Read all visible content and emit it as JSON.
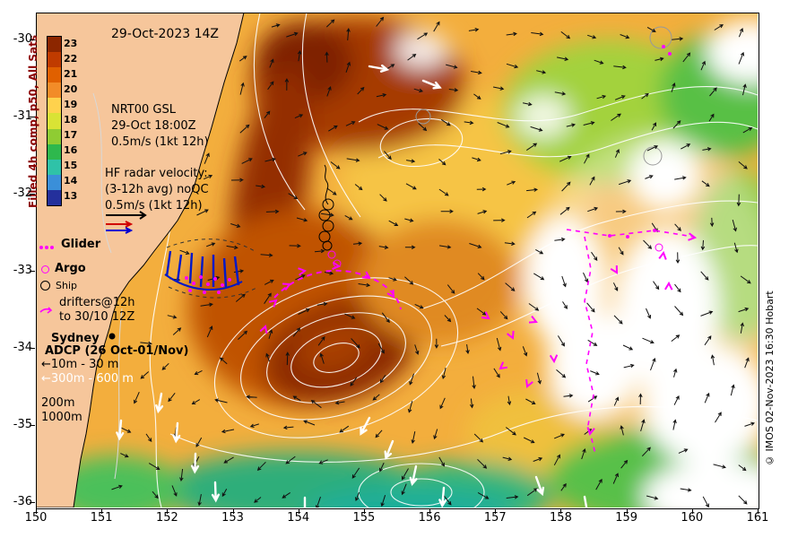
{
  "title": "29-Oct-2023 14Z",
  "colorbar": {
    "label": "Filled 4h comp, p50, All Sats",
    "ticks": [
      "23",
      "22",
      "21",
      "20",
      "19",
      "18",
      "17",
      "16",
      "15",
      "14",
      "13"
    ],
    "colors": [
      "#8c2600",
      "#c03b00",
      "#e06000",
      "#f28c28",
      "#ffd24d",
      "#d9e335",
      "#8fcc33",
      "#2eb84d",
      "#2fc2a8",
      "#3a8fd9",
      "#24309c"
    ]
  },
  "axes": {
    "x_ticks": [
      "150",
      "151",
      "152",
      "153",
      "154",
      "155",
      "156",
      "157",
      "158",
      "159",
      "160",
      "161"
    ],
    "y_ticks": [
      "-30",
      "-31",
      "-32",
      "-33",
      "-34",
      "-35",
      "-36"
    ]
  },
  "annotations": {
    "gsl_line1": "NRT00 GSL",
    "gsl_line2": "29-Oct 18:00Z",
    "gsl_line3": "0.5m/s (1kt 12h)",
    "hf_line1": "HF radar velocity:",
    "hf_line2": "(3-12h avg) noQC",
    "hf_line3": "0.5m/s (1kt 12h)"
  },
  "legend": {
    "glider": "Glider",
    "argo": "Argo",
    "ship": "Ship",
    "drifters_line1": "drifters@12h",
    "drifters_line2": "to 30/10 12Z"
  },
  "map_labels": {
    "sydney": "Sydney",
    "adcp_title": "ADCP (26 Oct-01/Nov)",
    "adcp_line1": "10m - 30 m",
    "adcp_line2": "300m - 600 m",
    "adcp_line3": "200m",
    "adcp_line4": "1000m"
  },
  "icons": {
    "left_arrow": "←"
  },
  "copyright": "© IMOS 02-Nov-2023 16:30 Hobart",
  "colors": {
    "magenta": "#ff00ff",
    "radar_blue": "#0018c8",
    "land": "#f6c69b",
    "label_red": "#8b0000"
  }
}
